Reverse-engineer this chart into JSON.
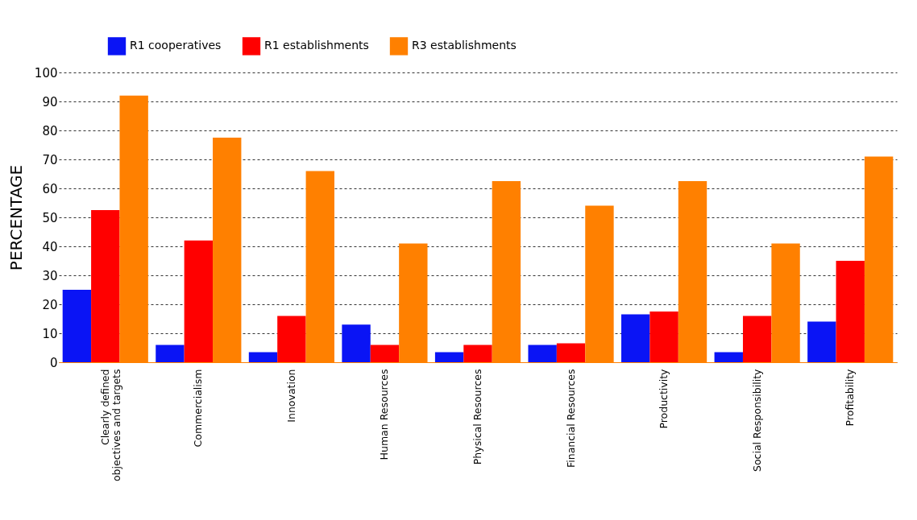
{
  "chart_data": {
    "type": "bar",
    "ylabel": "PERCENTAGE",
    "categories": [
      "Clearly defined objectives and targets",
      "Commercialism",
      "Innovation",
      "Human Resources",
      "Physical Resources",
      "Financial Resources",
      "Productivity",
      "Social Responsibility",
      "Profitability"
    ],
    "series": [
      {
        "name": "R1 cooperatives",
        "color": "#0a14f5",
        "values": [
          25,
          6,
          3.5,
          13,
          3.5,
          6,
          16.5,
          3.5,
          14
        ]
      },
      {
        "name": "R1 establishments",
        "color": "#ff0000",
        "values": [
          52.5,
          42,
          16,
          6,
          6,
          6.5,
          17.5,
          16,
          35
        ]
      },
      {
        "name": "R3 establishments",
        "color": "#ff8000",
        "values": [
          92,
          77.5,
          66,
          41,
          62.5,
          54,
          62.5,
          41,
          71
        ]
      }
    ],
    "ylim": [
      0,
      100
    ],
    "yticks": [
      0,
      10,
      20,
      30,
      40,
      50,
      60,
      70,
      80,
      90,
      100
    ],
    "grid": "y",
    "legend": "top left"
  }
}
